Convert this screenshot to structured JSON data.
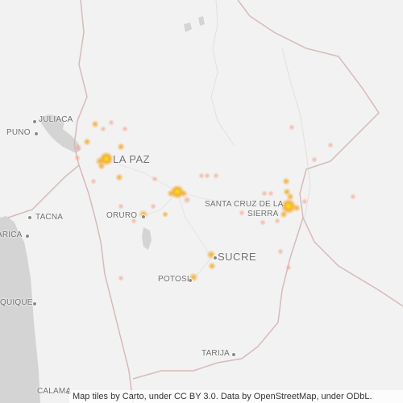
{
  "map": {
    "labels": {
      "juliaca": "JULIACA",
      "puno": "PUNO",
      "la_paz": "LA PAZ",
      "tacna": "TACNA",
      "arica": "ARICA",
      "oruro": "ORURO",
      "santa_cruz_line1": "SANTA CRUZ DE LA",
      "santa_cruz_line2": "SIERRA",
      "sucre": "SUCRE",
      "potosi": "POTOSI",
      "iquique": "QUIQUE",
      "tarija": "TARIJA",
      "calama": "CALAMA"
    },
    "attribution": "Map tiles by Carto, under CC BY 3.0. Data by OpenStreetMap, under ODbL.",
    "colors": {
      "land": "#f2f2f2",
      "water": "#d4d4d4",
      "border": "#d9b9b9",
      "heat_low": "#f7b9a8",
      "heat_mid": "#f5a623",
      "heat_high": "#ffe600"
    }
  }
}
